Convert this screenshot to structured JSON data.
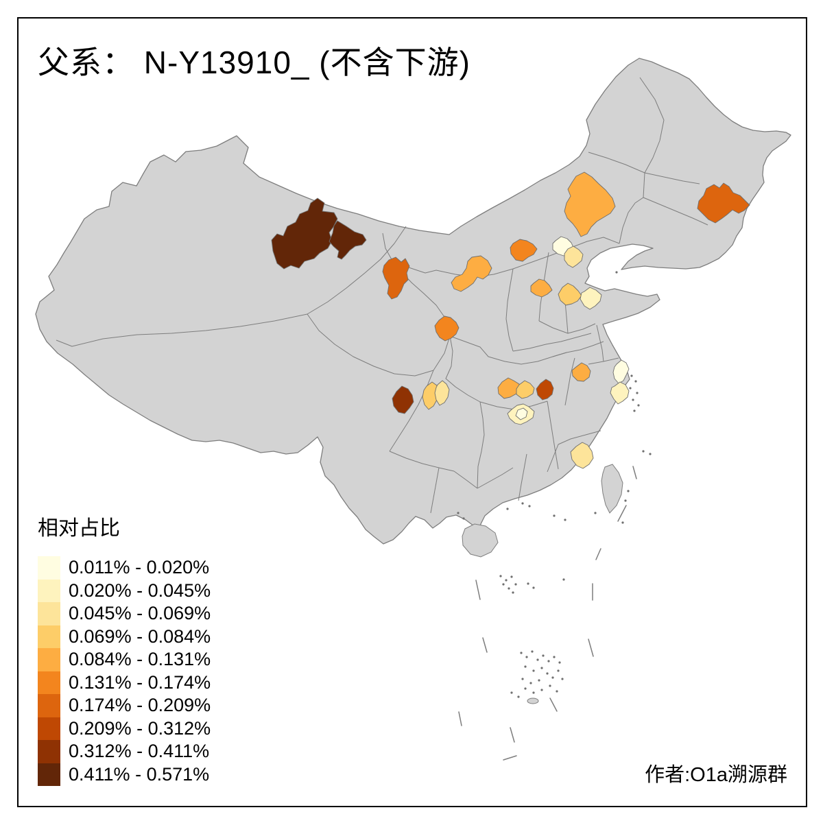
{
  "title": "父系： N-Y13910_ (不含下游)",
  "attribution": "作者:O1a溯源群",
  "legend": {
    "title": "相对占比",
    "classes": [
      {
        "label": "0.011% - 0.020%",
        "color": "#FFFDE1"
      },
      {
        "label": "0.020% - 0.045%",
        "color": "#FEF3BE"
      },
      {
        "label": "0.045% - 0.069%",
        "color": "#FDE49A"
      },
      {
        "label": "0.069% - 0.084%",
        "color": "#FDCD68"
      },
      {
        "label": "0.084% - 0.131%",
        "color": "#FDAD42"
      },
      {
        "label": "0.131% - 0.174%",
        "color": "#F3851E"
      },
      {
        "label": "0.174% - 0.209%",
        "color": "#DD650E"
      },
      {
        "label": "0.209% - 0.312%",
        "color": "#BF4803"
      },
      {
        "label": "0.312% - 0.411%",
        "color": "#8F3203"
      },
      {
        "label": "0.411% - 0.571%",
        "color": "#622608"
      }
    ]
  },
  "map": {
    "land_color": "#D3D3D3",
    "border_color": "#7d7d7d",
    "sea_color": "#FFFFFF",
    "islet_color": "#6f6f6f",
    "regions": [
      {
        "id": "r1",
        "class": 10,
        "range": "0.411% - 0.571%"
      },
      {
        "id": "r2",
        "class": 10,
        "range": "0.411% - 0.571%"
      },
      {
        "id": "r3",
        "class": 7,
        "range": "0.174% - 0.209%"
      },
      {
        "id": "r4",
        "class": 5,
        "range": "0.084% - 0.131%"
      },
      {
        "id": "r5",
        "class": 6,
        "range": "0.131% - 0.174%"
      },
      {
        "id": "r6",
        "class": 5,
        "range": "0.084% - 0.131%"
      },
      {
        "id": "r7",
        "class": 7,
        "range": "0.174% - 0.209%"
      },
      {
        "id": "r8",
        "class": 1,
        "range": "0.011% - 0.020%"
      },
      {
        "id": "r9",
        "class": 3,
        "range": "0.045% - 0.069%"
      },
      {
        "id": "r10",
        "class": 5,
        "range": "0.084% - 0.131%"
      },
      {
        "id": "r11",
        "class": 4,
        "range": "0.069% - 0.084%"
      },
      {
        "id": "r12",
        "class": 2,
        "range": "0.020% - 0.045%"
      },
      {
        "id": "r13",
        "class": 6,
        "range": "0.131% - 0.174%"
      },
      {
        "id": "r14",
        "class": 9,
        "range": "0.312% - 0.411%"
      },
      {
        "id": "r15a",
        "class": 4,
        "range": "0.069% - 0.084%"
      },
      {
        "id": "r15b",
        "class": 3,
        "range": "0.045% - 0.069%"
      },
      {
        "id": "r16a",
        "class": 5,
        "range": "0.084% - 0.131%"
      },
      {
        "id": "r16b",
        "class": 4,
        "range": "0.069% - 0.084%"
      },
      {
        "id": "r17",
        "class": 8,
        "range": "0.209% - 0.312%"
      },
      {
        "id": "r18a",
        "class": 2,
        "range": "0.020% - 0.045%"
      },
      {
        "id": "r18b",
        "class": 1,
        "range": "0.011% - 0.020%"
      },
      {
        "id": "r19",
        "class": 5,
        "range": "0.084% - 0.131%"
      },
      {
        "id": "r20",
        "class": 1,
        "range": "0.011% - 0.020%"
      },
      {
        "id": "r21",
        "class": 2,
        "range": "0.020% - 0.045%"
      },
      {
        "id": "r22",
        "class": 3,
        "range": "0.045% - 0.069%"
      }
    ]
  },
  "chart_data": {
    "type": "choropleth",
    "title": "父系： N-Y13910_ (不含下游)",
    "legend_title": "相对占比",
    "bins": [
      "0.011% - 0.020%",
      "0.020% - 0.045%",
      "0.045% - 0.069%",
      "0.069% - 0.084%",
      "0.084% - 0.131%",
      "0.131% - 0.174%",
      "0.174% - 0.209%",
      "0.209% - 0.312%",
      "0.312% - 0.411%",
      "0.411% - 0.571%"
    ],
    "legend_position": "bottom-left",
    "note": "Prefecture-level map of China; uncolored prefectures have no reported value (gray)."
  }
}
